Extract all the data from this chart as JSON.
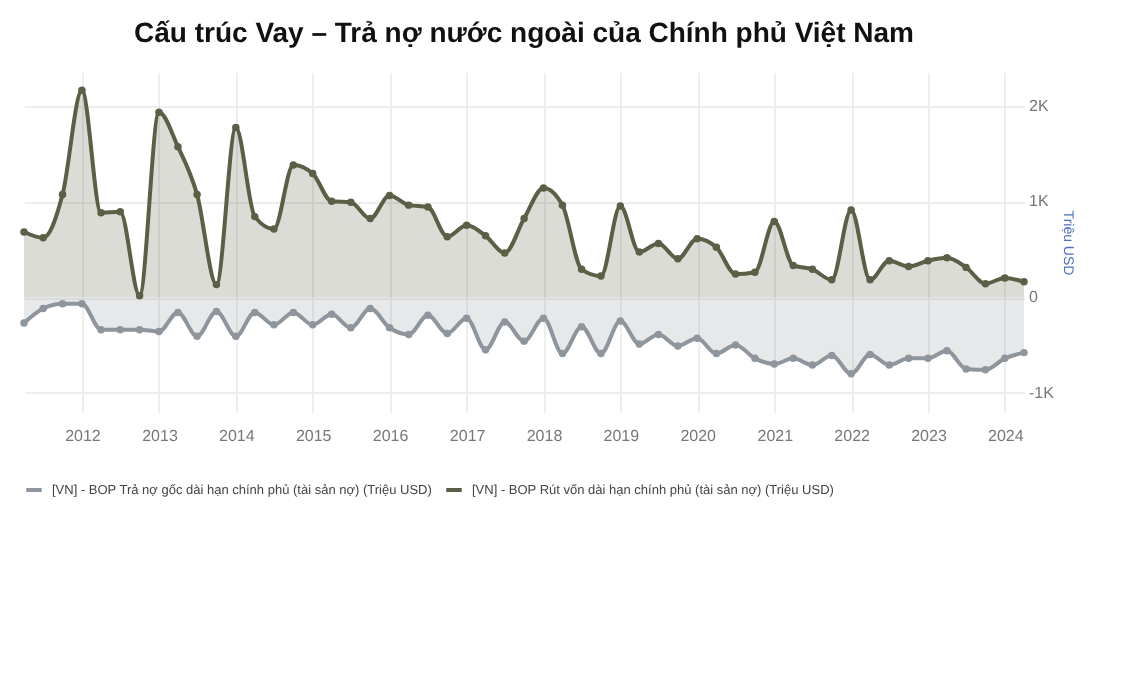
{
  "chart_data": {
    "type": "area",
    "title": "Cấu trúc Vay – Trả nợ nước ngoài của Chính phủ Việt Nam",
    "y2label": "Triệu USD",
    "x": [
      "2011-04",
      "2011-07",
      "2011-10",
      "2012-01",
      "2012-04",
      "2012-07",
      "2012-10",
      "2013-01",
      "2013-04",
      "2013-07",
      "2013-10",
      "2014-01",
      "2014-04",
      "2014-07",
      "2014-10",
      "2015-01",
      "2015-04",
      "2015-07",
      "2015-10",
      "2016-01",
      "2016-04",
      "2016-07",
      "2016-10",
      "2017-01",
      "2017-04",
      "2017-07",
      "2017-10",
      "2018-01",
      "2018-04",
      "2018-07",
      "2018-10",
      "2019-01",
      "2019-04",
      "2019-07",
      "2019-10",
      "2020-01",
      "2020-04",
      "2020-07",
      "2020-10",
      "2021-01",
      "2021-04",
      "2021-07",
      "2021-10",
      "2022-01",
      "2022-04",
      "2022-07",
      "2022-10",
      "2023-01",
      "2023-04",
      "2023-07",
      "2023-10",
      "2024-01",
      "2024-04"
    ],
    "series": [
      {
        "name": "[VN] - BOP Trả nợ gốc dài hạn chính phủ (tài sản nợ) (Triệu USD)",
        "color": "#8e959c",
        "axis": "y2",
        "values": [
          -270,
          -120,
          -70,
          -70,
          -340,
          -340,
          -340,
          -360,
          -160,
          -410,
          -150,
          -410,
          -160,
          -290,
          -160,
          -290,
          -180,
          -320,
          -120,
          -320,
          -390,
          -190,
          -380,
          -220,
          -550,
          -260,
          -460,
          -220,
          -590,
          -310,
          -590,
          -250,
          -490,
          -390,
          -510,
          -430,
          -590,
          -500,
          -640,
          -700,
          -640,
          -710,
          -610,
          -800,
          -600,
          -710,
          -640,
          -640,
          -560,
          -750,
          -760,
          -640,
          -580
        ]
      },
      {
        "name": "[VN] - BOP Rút vốn dài hạn chính phủ (tài sản nợ) (Triệu USD)",
        "color": "#5b5f45",
        "axis": "y2",
        "values": [
          680,
          620,
          1070,
          2160,
          880,
          890,
          15,
          1930,
          1570,
          1070,
          130,
          1770,
          840,
          710,
          1380,
          1290,
          1000,
          990,
          820,
          1060,
          960,
          940,
          630,
          750,
          640,
          460,
          820,
          1140,
          960,
          290,
          220,
          950,
          470,
          560,
          400,
          610,
          520,
          240,
          260,
          790,
          330,
          290,
          180,
          910,
          180,
          380,
          320,
          380,
          410,
          310,
          140,
          200,
          160
        ]
      }
    ],
    "xlim": [
      "2011-04",
      "2024-04"
    ],
    "xticks": [
      "2012",
      "2013",
      "2014",
      "2015",
      "2016",
      "2017",
      "2018",
      "2019",
      "2020",
      "2021",
      "2022",
      "2023",
      "2024"
    ],
    "y2lim": [
      -1200,
      2350
    ],
    "y2ticks": [
      {
        "value": -1000,
        "label": "-1K"
      },
      {
        "value": 0,
        "label": "0"
      },
      {
        "value": 1000,
        "label": "1K"
      },
      {
        "value": 2000,
        "label": "2K"
      }
    ],
    "grid": true,
    "legend": "bottom",
    "marker": "circle",
    "line_style": "solid"
  }
}
